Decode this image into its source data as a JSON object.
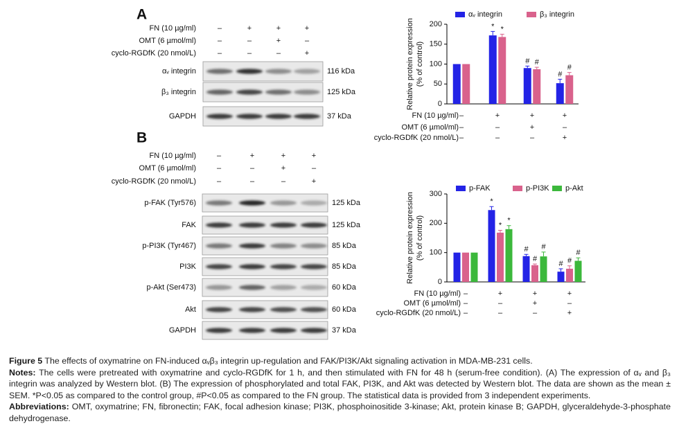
{
  "figure": {
    "panels": [
      {
        "label": "A",
        "treatments": [
          {
            "label": "FN (10 µg/ml)",
            "signs": [
              "–",
              "+",
              "+",
              "+"
            ]
          },
          {
            "label": "OMT (6 µmol/ml)",
            "signs": [
              "–",
              "–",
              "+",
              "–"
            ]
          },
          {
            "label": "cyclo-RGDfK (20 nmol/L)",
            "signs": [
              "–",
              "–",
              "–",
              "+"
            ]
          }
        ],
        "blots": [
          {
            "protein": "αᵥ integrin",
            "size": "116 kDa"
          },
          {
            "protein": "β₃ integrin",
            "size": "125 kDa"
          },
          {
            "protein": "GAPDH",
            "size": "37 kDa"
          }
        ]
      },
      {
        "label": "B",
        "treatments": [
          {
            "label": "FN (10 µg/ml)",
            "signs": [
              "–",
              "+",
              "+",
              "+"
            ]
          },
          {
            "label": "OMT (6 µmol/ml)",
            "signs": [
              "–",
              "–",
              "+",
              "–"
            ]
          },
          {
            "label": "cyclo-RGDfK (20 nmol/L)",
            "signs": [
              "–",
              "–",
              "–",
              "+"
            ]
          }
        ],
        "blots": [
          {
            "protein": "p-FAK (Tyr576)",
            "size": "125 kDa"
          },
          {
            "protein": "FAK",
            "size": "125 kDa"
          },
          {
            "protein": "p-PI3K (Tyr467)",
            "size": "85 kDa"
          },
          {
            "protein": "PI3K",
            "size": "85 kDa"
          },
          {
            "protein": "p-Akt (Ser473)",
            "size": "60 kDa"
          },
          {
            "protein": "Akt",
            "size": "60 kDa"
          },
          {
            "protein": "GAPDH",
            "size": "37 kDa"
          }
        ]
      }
    ],
    "caption": {
      "title": {
        "label": "Figure 5",
        "text": " The effects of oxymatrine on FN-induced αᵥβ₃ integrin up-regulation and FAK/PI3K/Akt signaling activation in MDA-MB-231 cells."
      },
      "notes": {
        "label": "Notes:",
        "text": " The cells were pretreated with oxymatrine and cyclo-RGDfK for 1 h, and then stimulated with FN for 48 h (serum-free condition). (A) The expression of αᵥ and β₃ integrin was analyzed by Western blot. (B) The expression of phosphorylated and total FAK, PI3K, and Akt was detected by Western blot. The data are shown as the mean ± SEM. *P<0.05 as compared to the control group, #P<0.05 as compared to the FN group. The statistical data is provided from 3 independent experiments."
      },
      "abbreviations": {
        "label": "Abbreviations:",
        "text": " OMT, oxymatrine; FN, fibronectin; FAK, focal adhesion kinase; PI3K, phosphoinositide 3-kinase; Akt, protein kinase B; GAPDH, glyceraldehyde-3-phosphate dehydrogenase."
      }
    }
  },
  "chart_data": [
    {
      "type": "bar",
      "ylabel": [
        "Relative protein expression",
        "(% of control)"
      ],
      "categories": [
        null,
        null,
        null,
        null
      ],
      "treatments": [
        {
          "label": "FN (10 µg/ml)",
          "signs": [
            "–",
            "+",
            "+",
            "+"
          ]
        },
        {
          "label": "OMT (6 µmol/ml)",
          "signs": [
            "–",
            "–",
            "+",
            "–"
          ]
        },
        {
          "label": "cyclo-RGDfK (20 nmol/L)",
          "signs": [
            "–",
            "–",
            "–",
            "+"
          ]
        }
      ],
      "series": [
        {
          "name": "αᵥ integrin",
          "color": "#2323e6",
          "values": [
            100,
            172,
            90,
            52
          ],
          "errors": [
            null,
            10,
            5,
            10
          ],
          "annotations": [
            null,
            "*",
            "#",
            "#"
          ]
        },
        {
          "name": "β₃ integrin",
          "color": "#d9628c",
          "values": [
            100,
            168,
            87,
            72
          ],
          "errors": [
            null,
            7,
            5,
            7
          ],
          "annotations": [
            null,
            "*",
            "#",
            "#"
          ]
        }
      ],
      "ylim": [
        0,
        200
      ],
      "yticks": [
        0,
        50,
        100,
        150,
        200
      ]
    },
    {
      "type": "bar",
      "ylabel": [
        "Relative protein expression",
        "(% of control)"
      ],
      "categories": [
        null,
        null,
        null,
        null
      ],
      "treatments": [
        {
          "label": "FN (10 µg/ml)",
          "signs": [
            "–",
            "+",
            "+",
            "+"
          ]
        },
        {
          "label": "OMT (6 µmol/ml)",
          "signs": [
            "–",
            "–",
            "+",
            "–"
          ]
        },
        {
          "label": "cyclo-RGDfK (20 nmol/L)",
          "signs": [
            "–",
            "–",
            "–",
            "+"
          ]
        }
      ],
      "series": [
        {
          "name": "p-FAK",
          "color": "#2323e6",
          "values": [
            100,
            245,
            88,
            35
          ],
          "errors": [
            null,
            12,
            6,
            10
          ],
          "annotations": [
            null,
            "*",
            "#",
            "#"
          ]
        },
        {
          "name": "p-PI3K",
          "color": "#d9628c",
          "values": [
            100,
            168,
            57,
            45
          ],
          "errors": [
            null,
            8,
            4,
            10
          ],
          "annotations": [
            null,
            "*",
            "#",
            "#"
          ]
        },
        {
          "name": "p-Akt",
          "color": "#3cb83c",
          "values": [
            100,
            180,
            87,
            72
          ],
          "errors": [
            null,
            12,
            15,
            10
          ],
          "annotations": [
            null,
            "*",
            "#",
            "#"
          ]
        }
      ],
      "ylim": [
        0,
        300
      ],
      "yticks": [
        0,
        100,
        200,
        300
      ]
    }
  ]
}
